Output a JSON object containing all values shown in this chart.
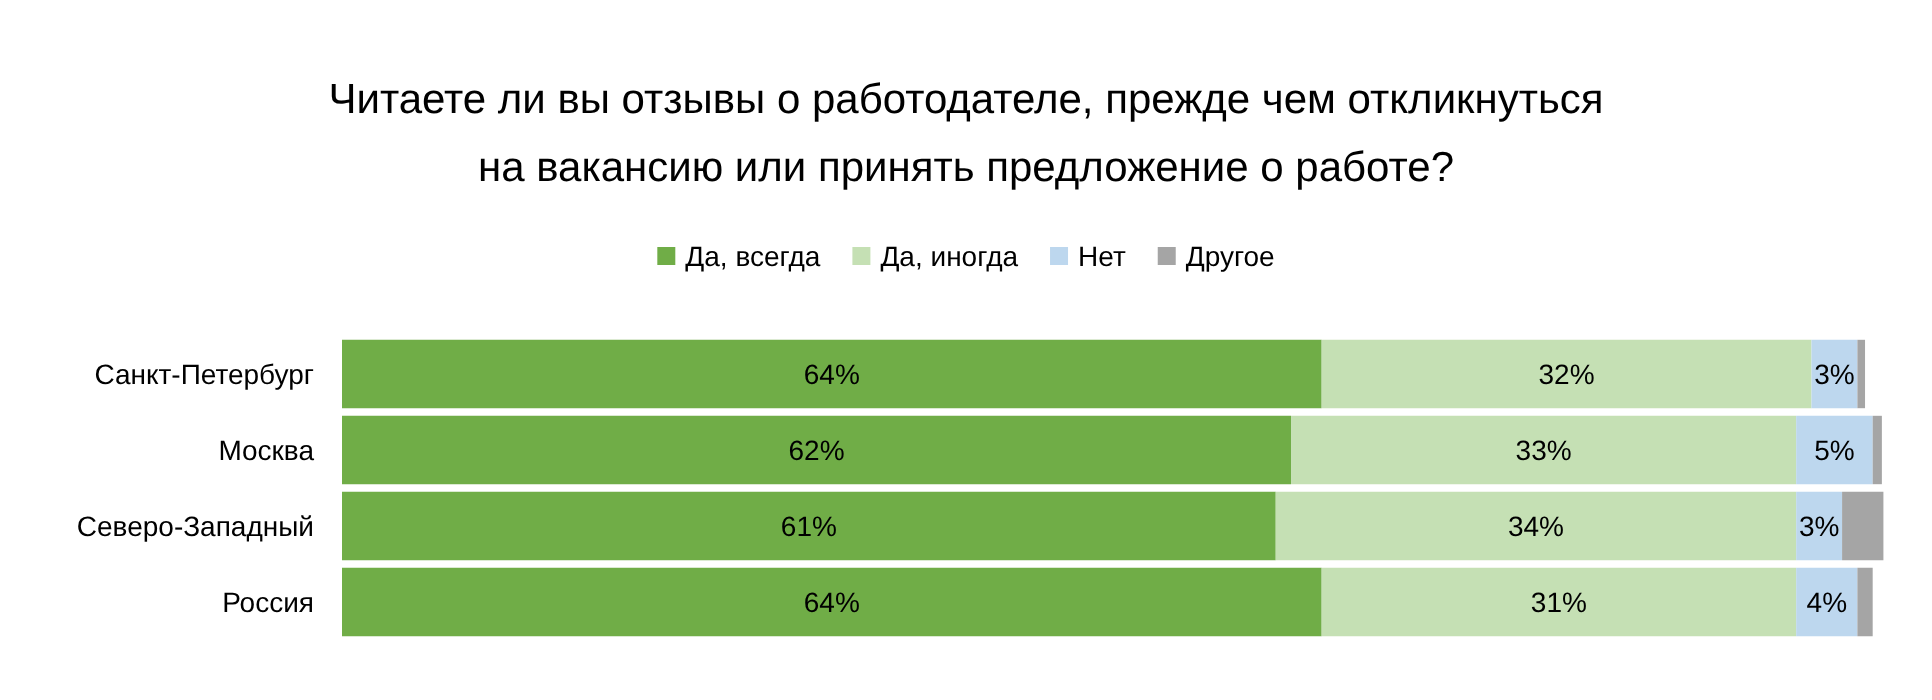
{
  "chart_data": {
    "type": "bar",
    "orientation": "horizontal",
    "stacked": true,
    "title": "Читаете ли вы отзывы о работодателе, прежде чем откликнуться\nна вакансию или принять предложение о работе?",
    "categories": [
      "Санкт-Петербург",
      "Москва",
      "Северо-Западный",
      "Россия"
    ],
    "series": [
      {
        "name": "Да, всегда",
        "color": "#70ad47",
        "values": [
          64,
          62,
          61,
          64
        ],
        "value_labels": [
          "64%",
          "62%",
          "61%",
          "64%"
        ]
      },
      {
        "name": "Да, иногда",
        "color": "#c5e0b4",
        "values": [
          32,
          33,
          34,
          31
        ],
        "value_labels": [
          "32%",
          "33%",
          "34%",
          "31%"
        ]
      },
      {
        "name": "Нет",
        "color": "#bdd7ee",
        "values": [
          3,
          5,
          3,
          4
        ],
        "value_labels": [
          "3%",
          "5%",
          "3%",
          "4%"
        ]
      },
      {
        "name": "Другое",
        "color": "#a5a5a5",
        "values": [
          0.5,
          0.6,
          2.7,
          1
        ],
        "value_labels": [
          null,
          null,
          null,
          null
        ]
      }
    ],
    "xlim": [
      0,
      101
    ],
    "tick_labels": "y",
    "legend": "top"
  }
}
